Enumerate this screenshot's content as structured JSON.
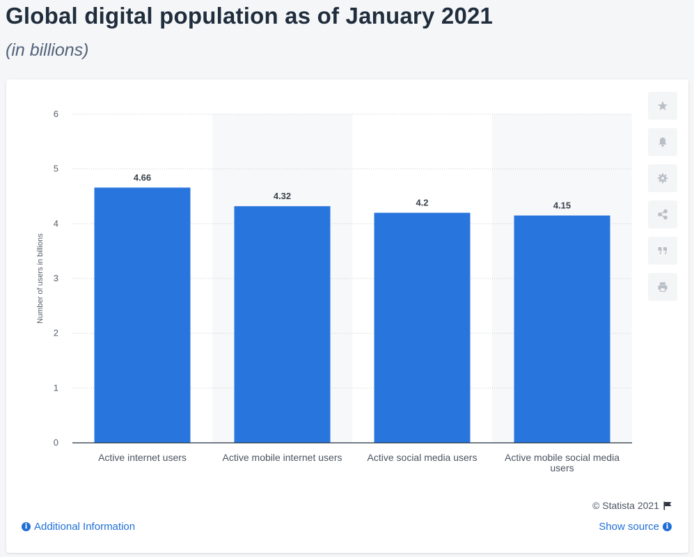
{
  "header": {
    "title": "Global digital population as of January 2021",
    "subtitle": "(in billions)"
  },
  "toolbar": {
    "icons": [
      "star-icon",
      "bell-icon",
      "gear-icon",
      "share-icon",
      "quote-icon",
      "print-icon"
    ]
  },
  "footer": {
    "credit": "© Statista 2021",
    "additional_info": "Additional Information",
    "show_source": "Show source"
  },
  "colors": {
    "bar": "#2875de",
    "band": "#f7f8f9",
    "grid": "#c9ced4",
    "link": "#1f6fd6"
  },
  "chart_data": {
    "type": "bar",
    "categories": [
      "Active internet users",
      "Active mobile internet users",
      "Active social media users",
      "Active mobile social media users"
    ],
    "values": [
      4.66,
      4.32,
      4.2,
      4.15
    ],
    "value_labels": [
      "4.66",
      "4.32",
      "4.2",
      "4.15"
    ],
    "xlabel": "",
    "ylabel": "Number of users in billions",
    "ylim": [
      0,
      6
    ],
    "yticks": [
      0,
      1,
      2,
      3,
      4,
      5,
      6
    ],
    "grid": true,
    "legend": "none"
  }
}
